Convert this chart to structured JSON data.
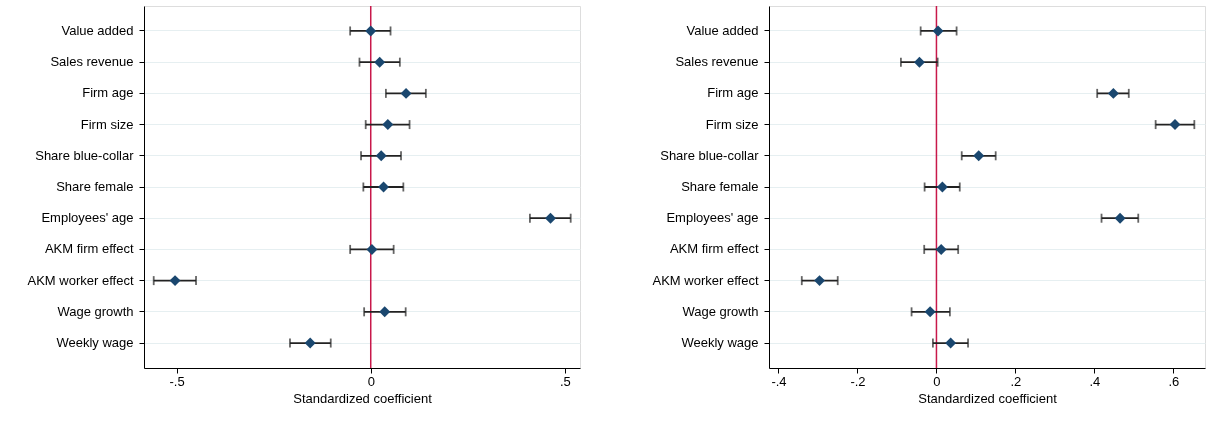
{
  "chart_data": [
    {
      "type": "scatter",
      "orientation": "horizontal",
      "categories": [
        "Value added",
        "Sales revenue",
        "Firm age",
        "Firm size",
        "Share blue-collar",
        "Share female",
        "Employees' age",
        "AKM firm effect",
        "AKM worker effect",
        "Wage growth",
        "Weekly wage"
      ],
      "values": [
        0.0,
        0.023,
        0.091,
        0.044,
        0.027,
        0.033,
        0.463,
        0.003,
        -0.504,
        0.036,
        -0.156
      ],
      "errors": [
        [
          -0.053,
          0.051
        ],
        [
          -0.029,
          0.075
        ],
        [
          0.039,
          0.142
        ],
        [
          -0.013,
          0.1
        ],
        [
          -0.025,
          0.078
        ],
        [
          -0.019,
          0.084
        ],
        [
          0.41,
          0.515
        ],
        [
          -0.053,
          0.059
        ],
        [
          -0.559,
          -0.45
        ],
        [
          -0.017,
          0.09
        ],
        [
          -0.208,
          -0.103
        ]
      ],
      "color": "#1a476f",
      "marker": "diamond",
      "grid": "y",
      "xlim": [
        -0.584,
        0.539
      ],
      "xticks": [
        {
          "value": -0.5,
          "label": "-.5"
        },
        0,
        {
          "value": 0.5,
          "label": ".5"
        }
      ],
      "xlabel": "Standardized coefficient",
      "ref_lines": [
        {
          "axis": "x",
          "value": 0,
          "color": "#c8184a"
        }
      ]
    },
    {
      "type": "scatter",
      "orientation": "horizontal",
      "categories": [
        "Value added",
        "Sales revenue",
        "Firm age",
        "Firm size",
        "Share blue-collar",
        "Share female",
        "Employees' age",
        "AKM firm effect",
        "AKM worker effect",
        "Wage growth",
        "Weekly wage"
      ],
      "values": [
        0.004,
        -0.043,
        0.448,
        0.604,
        0.107,
        0.015,
        0.465,
        0.012,
        -0.296,
        -0.016,
        0.036
      ],
      "errors": [
        [
          -0.04,
          0.051
        ],
        [
          -0.09,
          0.003
        ],
        [
          0.407,
          0.487
        ],
        [
          0.555,
          0.653
        ],
        [
          0.064,
          0.15
        ],
        [
          -0.03,
          0.059
        ],
        [
          0.418,
          0.511
        ],
        [
          -0.031,
          0.055
        ],
        [
          -0.341,
          -0.25
        ],
        [
          -0.063,
          0.034
        ],
        [
          -0.009,
          0.08
        ]
      ],
      "color": "#1a476f",
      "marker": "diamond",
      "grid": "y",
      "xlim": [
        -0.424,
        0.68
      ],
      "xticks": [
        {
          "value": -0.4,
          "label": "-.4"
        },
        {
          "value": -0.2,
          "label": "-.2"
        },
        0,
        {
          "value": 0.2,
          "label": ".2"
        },
        {
          "value": 0.4,
          "label": ".4"
        },
        {
          "value": 0.6,
          "label": ".6"
        }
      ],
      "xlabel": "Standardized coefficient",
      "ref_lines": [
        {
          "axis": "x",
          "value": 0,
          "color": "#c8184a"
        }
      ]
    }
  ]
}
